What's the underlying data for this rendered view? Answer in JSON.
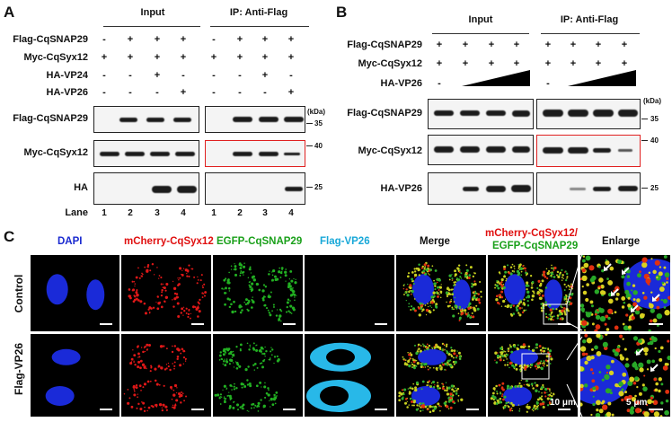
{
  "panels": {
    "a": "A",
    "b": "B",
    "c": "C"
  },
  "panel_a": {
    "header_input": "Input",
    "header_ip": "IP: Anti-Flag",
    "row_labels": [
      "Flag-CqSNAP29",
      "Myc-CqSyx12",
      "HA-VP24",
      "HA-VP26"
    ],
    "signs_input": [
      [
        "-",
        "+",
        "+",
        "+"
      ],
      [
        "+",
        "+",
        "+",
        "+"
      ],
      [
        "-",
        "-",
        "+",
        "-"
      ],
      [
        "-",
        "-",
        "-",
        "+"
      ]
    ],
    "signs_ip": [
      [
        "-",
        "+",
        "+",
        "+"
      ],
      [
        "+",
        "+",
        "+",
        "+"
      ],
      [
        "-",
        "-",
        "+",
        "-"
      ],
      [
        "-",
        "-",
        "-",
        "+"
      ]
    ],
    "blot_labels": [
      "Flag-CqSNAP29",
      "Myc-CqSyx12",
      "HA"
    ],
    "kda": "(kDa)",
    "mw": [
      "35",
      "40",
      "25"
    ],
    "lane_label": "Lane",
    "lanes": [
      "1",
      "2",
      "3",
      "4",
      "1",
      "2",
      "3",
      "4"
    ]
  },
  "panel_b": {
    "header_input": "Input",
    "header_ip": "IP: Anti-Flag",
    "row_labels": [
      "Flag-CqSNAP29",
      "Myc-CqSyx12",
      "HA-VP26"
    ],
    "signs_input": [
      [
        "+",
        "+",
        "+",
        "+"
      ],
      [
        "+",
        "+",
        "+",
        "+"
      ],
      [
        "-",
        "",
        "",
        ""
      ]
    ],
    "signs_ip": [
      [
        "+",
        "+",
        "+",
        "+"
      ],
      [
        "+",
        "+",
        "+",
        "+"
      ],
      [
        "-",
        "",
        "",
        ""
      ]
    ],
    "blot_labels": [
      "Flag-CqSNAP29",
      "Myc-CqSyx12",
      "HA-VP26"
    ],
    "kda": "(kDa)",
    "mw": [
      "35",
      "40",
      "25"
    ]
  },
  "panel_c": {
    "columns": [
      "DAPI",
      "mCherry-CqSyx12",
      "EGFP-CqSNAP29",
      "Flag-VP26",
      "Merge",
      "mCherry-CqSyx12/",
      "EGFP-CqSNAP29",
      "Enlarge"
    ],
    "rows": [
      "Control",
      "Flag-VP26"
    ],
    "scale_10": "10 μm",
    "scale_5": "5 μm"
  },
  "colors": {
    "red": "#e01010",
    "green": "#1aa01a",
    "cyan": "#18a8d8",
    "blue": "#1a2ad0",
    "box": "#e02020"
  }
}
